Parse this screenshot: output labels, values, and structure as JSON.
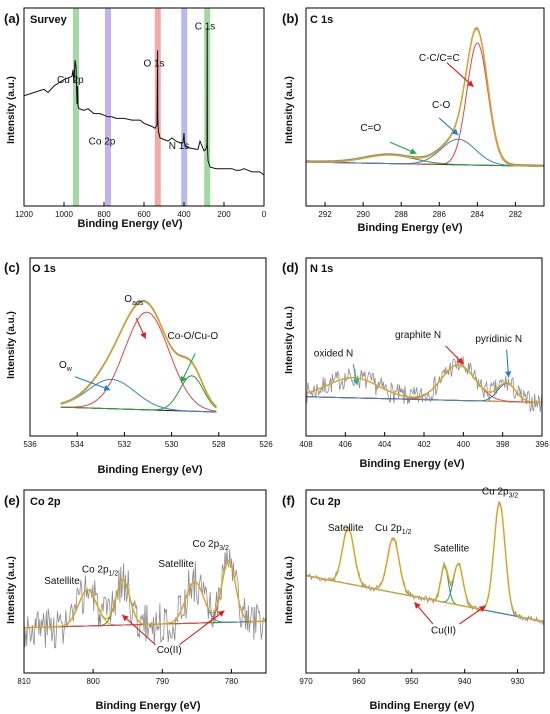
{
  "figure": {
    "xaxis_label": "Binding Energy (eV)",
    "yaxis_label": "Intensity (a.u.)"
  },
  "colors": {
    "raw": "#8c8c8c",
    "background": "#1a1a1a",
    "envelope": "#d9a520",
    "red": "#e0444a",
    "blue": "#3a7fd0",
    "green": "#2a9a2a",
    "band_green": "#8fd48f",
    "band_purple": "#b7a4ea",
    "band_red": "#f29a9a",
    "band_blue": "#a9aef0",
    "arrow_red": "#e02020",
    "arrow_blue": "#1f7fd8",
    "arrow_green": "#1aa84a",
    "arrow_teal": "#2aa89a"
  },
  "chart_data": [
    {
      "panel": "(a)",
      "name": "Survey",
      "type": "line",
      "xlim": [
        1200,
        0
      ],
      "xticks": [
        1200,
        1000,
        800,
        600,
        400,
        200,
        0
      ],
      "ylim": [
        0,
        100
      ],
      "bands": [
        {
          "x": 940,
          "color": "band_green"
        },
        {
          "x": 780,
          "color": "band_purple"
        },
        {
          "x": 531,
          "color": "band_red"
        },
        {
          "x": 399,
          "color": "band_blue"
        },
        {
          "x": 284,
          "color": "band_green"
        }
      ],
      "labels": [
        {
          "text": "Cu 2p",
          "x": 968,
          "y": 60
        },
        {
          "text": "Co 2p",
          "x": 810,
          "y": 22
        },
        {
          "text": "O 1s",
          "x": 550,
          "y": 70
        },
        {
          "text": "N 1s",
          "x": 425,
          "y": 19
        },
        {
          "text": "C 1s",
          "x": 295,
          "y": 93
        }
      ],
      "series": [
        {
          "name": "raw",
          "x": [
            1200,
            1150,
            1100,
            1080,
            1050,
            1000,
            980,
            960,
            955,
            950,
            945,
            940,
            935,
            932,
            930,
            925,
            900,
            880,
            850,
            820,
            800,
            780,
            760,
            740,
            700,
            660,
            620,
            600,
            580,
            560,
            545,
            535,
            532,
            531,
            528,
            520,
            500,
            480,
            460,
            440,
            420,
            405,
            400,
            398,
            395,
            380,
            340,
            330,
            320,
            300,
            290,
            285,
            284,
            283,
            280,
            270,
            240,
            200,
            160,
            140,
            120,
            100,
            80,
            60,
            40,
            20,
            0
          ],
          "y": [
            52,
            54,
            56,
            54,
            58,
            62,
            63,
            64,
            68,
            60,
            74,
            70,
            47,
            58,
            46,
            44,
            43,
            44,
            41,
            41,
            40,
            39,
            39,
            38,
            38,
            37,
            37,
            35,
            34,
            33,
            32,
            34,
            80,
            38,
            30,
            26,
            25,
            24,
            26,
            24,
            23,
            23,
            29,
            24,
            21,
            20,
            19,
            19,
            24,
            18,
            19,
            22,
            94,
            22,
            12,
            8,
            7,
            7,
            7,
            6,
            6,
            7,
            6,
            5,
            5,
            5,
            3
          ]
        }
      ]
    },
    {
      "panel": "(b)",
      "name": "C 1s",
      "type": "line",
      "xlim": [
        293,
        280.5
      ],
      "xticks": [
        292,
        290,
        288,
        286,
        284,
        282
      ],
      "ylim": [
        0,
        100
      ],
      "labels": [
        {
          "text": "C-C/C=C",
          "x": 286.0,
          "y": 78
        },
        {
          "text": "C-O",
          "x": 285.9,
          "y": 45
        },
        {
          "text": "C=O",
          "x": 289.6,
          "y": 29
        }
      ],
      "peaks": [
        {
          "name": "C-C/C=C",
          "center": 284.0,
          "height": 86,
          "width": 0.55,
          "color": "red"
        },
        {
          "name": "C-O",
          "center": 285.0,
          "height": 18,
          "width": 0.9,
          "color": "blue"
        },
        {
          "name": "C=O",
          "center": 288.6,
          "height": 6,
          "width": 1.3,
          "color": "green"
        }
      ],
      "background": {
        "left": 7,
        "right": 4
      },
      "arrows": [
        {
          "from": [
            285.6,
            77
          ],
          "to": [
            284.2,
            60
          ],
          "color": "arrow_red"
        },
        {
          "from": [
            286.0,
            38
          ],
          "to": [
            285.0,
            26
          ],
          "color": "arrow_blue"
        },
        {
          "from": [
            288.6,
            21
          ],
          "to": [
            287.2,
            13
          ],
          "color": "arrow_green"
        }
      ]
    },
    {
      "panel": "(c)",
      "name": "O 1s",
      "type": "line",
      "xlim": [
        536,
        526
      ],
      "xticks": [
        536,
        534,
        532,
        530,
        528,
        526
      ],
      "ylim": [
        0,
        100
      ],
      "xrange": [
        534.7,
        528.1
      ],
      "labels": [
        {
          "text": "O_ads",
          "x": 531.6,
          "y": 90
        },
        {
          "text": "Co-O/Cu-O",
          "x": 529.1,
          "y": 60
        },
        {
          "text": "O_w",
          "x": 534.5,
          "y": 36
        }
      ],
      "peaks": [
        {
          "name": "O_ads",
          "center": 531.05,
          "height": 80,
          "width": 0.95,
          "color": "red"
        },
        {
          "name": "O_w",
          "center": 532.55,
          "height": 24,
          "width": 1.0,
          "color": "blue"
        },
        {
          "name": "Co-O/Cu-O",
          "center": 529.15,
          "height": 29,
          "width": 0.5,
          "color": "green"
        }
      ],
      "background": {
        "left": 4,
        "right": 0
      },
      "arrows": [
        {
          "from": [
            531.5,
            77
          ],
          "to": [
            531.1,
            60
          ],
          "color": "arrow_red"
        },
        {
          "from": [
            534.1,
            29
          ],
          "to": [
            532.6,
            18
          ],
          "color": "arrow_blue"
        },
        {
          "from": [
            529.0,
            48
          ],
          "to": [
            529.6,
            24
          ],
          "color": "arrow_green"
        }
      ]
    },
    {
      "panel": "(d)",
      "name": "N 1s",
      "type": "line",
      "xlim": [
        408,
        396
      ],
      "xticks": [
        408,
        406,
        404,
        402,
        400,
        398,
        396
      ],
      "ylim": [
        0,
        100
      ],
      "labels": [
        {
          "text": "oxided N",
          "x": 406.6,
          "y": 60
        },
        {
          "text": "graphite N",
          "x": 402.3,
          "y": 79
        },
        {
          "text": "pyridinic N",
          "x": 398.2,
          "y": 75
        }
      ],
      "peaks": [
        {
          "name": "oxided N",
          "center": 405.6,
          "height": 21,
          "width": 1.3,
          "color": "envelope"
        },
        {
          "name": "graphite N",
          "center": 400.25,
          "height": 37,
          "width": 0.85,
          "color": "red"
        },
        {
          "name": "pyridinic N",
          "center": 397.8,
          "height": 19,
          "width": 0.45,
          "color": "blue"
        }
      ],
      "background": {
        "left": 18,
        "right": 12
      },
      "noise": {
        "seed": 7,
        "amp": 11
      },
      "arrows": [
        {
          "from": [
            405.6,
            52
          ],
          "to": [
            405.4,
            30
          ],
          "color": "arrow_teal"
        },
        {
          "from": [
            400.9,
            71
          ],
          "to": [
            400.0,
            52
          ],
          "color": "arrow_red"
        },
        {
          "from": [
            397.8,
            67
          ],
          "to": [
            397.7,
            38
          ],
          "color": "arrow_blue"
        }
      ]
    },
    {
      "panel": "(e)",
      "name": "Co 2p",
      "type": "line",
      "xlim": [
        810,
        775
      ],
      "xticks": [
        810,
        800,
        790,
        780
      ],
      "ylim": [
        0,
        100
      ],
      "labels": [
        {
          "text": "Satellite",
          "x": 804.5,
          "y": 47
        },
        {
          "text": "Co 2p1/2",
          "x": 799.0,
          "y": 58
        },
        {
          "text": "Satellite",
          "x": 788.0,
          "y": 63
        },
        {
          "text": "Co 2p3/2",
          "x": 783.0,
          "y": 82
        },
        {
          "text": "Co(II)",
          "x": 789.0,
          "y": -18
        }
      ],
      "peaks": [
        {
          "name": "Satellite",
          "center": 800.8,
          "height": 34,
          "width": 1.3,
          "color": "envelope"
        },
        {
          "name": "Co 2p1/2",
          "center": 795.7,
          "height": 43,
          "width": 1.0,
          "color": "green"
        },
        {
          "name": "Satellite",
          "center": 785.3,
          "height": 39,
          "width": 1.3,
          "color": "blue"
        },
        {
          "name": "Co 2p3/2",
          "center": 780.4,
          "height": 58,
          "width": 1.0,
          "color": "red"
        }
      ],
      "background": {
        "left": 6,
        "right": 12
      },
      "noise": {
        "seed": 3,
        "amp": 20
      },
      "arrows": [
        {
          "from": [
            791.0,
            -10
          ],
          "to": [
            795.8,
            18
          ],
          "color": "arrow_red"
        },
        {
          "from": [
            787.5,
            -10
          ],
          "to": [
            781.0,
            22
          ],
          "color": "arrow_red"
        }
      ]
    },
    {
      "panel": "(f)",
      "name": "Cu 2p",
      "type": "line",
      "xlim": [
        970,
        925
      ],
      "xticks": [
        970,
        960,
        950,
        940,
        930
      ],
      "ylim": [
        0,
        100
      ],
      "labels": [
        {
          "text": "Satellite",
          "x": 962.5,
          "y": 77
        },
        {
          "text": "Cu 2p1/2",
          "x": 953.5,
          "y": 77
        },
        {
          "text": "Satellite",
          "x": 942.5,
          "y": 60
        },
        {
          "text": "Cu 2p3/2",
          "x": 933.3,
          "y": 107
        },
        {
          "text": "Cu(II)",
          "x": 944.0,
          "y": -8
        }
      ],
      "peaks": [
        {
          "name": "Satellite",
          "center": 962.0,
          "height": 46,
          "width": 1.1,
          "color": "envelope"
        },
        {
          "name": "Cu 2p1/2",
          "center": 953.5,
          "height": 45,
          "width": 1.1,
          "color": "envelope"
        },
        {
          "name": "Satellite",
          "center": 943.8,
          "height": 30,
          "width": 0.7,
          "color": "green"
        },
        {
          "name": "Satellite",
          "center": 941.2,
          "height": 34,
          "width": 0.9,
          "color": "blue"
        },
        {
          "name": "Cu 2p3/2",
          "center": 933.4,
          "height": 91,
          "width": 1.05,
          "color": "envelope"
        }
      ],
      "background": {
        "left": 40,
        "right": 2
      },
      "noise": {
        "seed": 11,
        "amp": 2.5
      },
      "arrows": [
        {
          "from": [
            946.0,
            0
          ],
          "to": [
            949.5,
            18
          ],
          "color": "arrow_red"
        },
        {
          "from": [
            941.0,
            0
          ],
          "to": [
            936.0,
            15
          ],
          "color": "arrow_red"
        }
      ]
    }
  ]
}
